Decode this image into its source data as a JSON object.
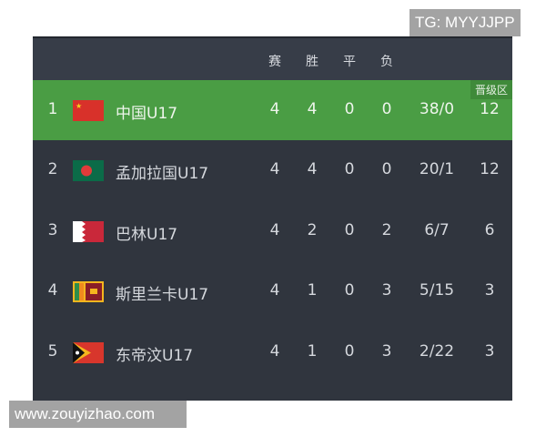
{
  "watermarks": {
    "top": "TG: MYYJJPP",
    "bottom": "www.zouyizhao.com"
  },
  "header": {
    "columns": [
      "赛",
      "胜",
      "平",
      "负"
    ]
  },
  "badge": "晋级区",
  "colors": {
    "promotion": "#4a9d44",
    "panel": "#30353e",
    "header": "#373d48"
  },
  "rows": [
    {
      "rank": "1",
      "flag": "china-flag",
      "team": "中国U17",
      "played": "4",
      "won": "4",
      "drawn": "0",
      "lost": "0",
      "goals": "38/0",
      "points": "12"
    },
    {
      "rank": "2",
      "flag": "bangladesh-flag",
      "team": "孟加拉国U17",
      "played": "4",
      "won": "4",
      "drawn": "0",
      "lost": "0",
      "goals": "20/1",
      "points": "12"
    },
    {
      "rank": "3",
      "flag": "bahrain-flag",
      "team": "巴林U17",
      "played": "4",
      "won": "2",
      "drawn": "0",
      "lost": "2",
      "goals": "6/7",
      "points": "6"
    },
    {
      "rank": "4",
      "flag": "sri-lanka-flag",
      "team": "斯里兰卡U17",
      "played": "4",
      "won": "1",
      "drawn": "0",
      "lost": "3",
      "goals": "5/15",
      "points": "3"
    },
    {
      "rank": "5",
      "flag": "timor-leste-flag",
      "team": "东帝汶U17",
      "played": "4",
      "won": "1",
      "drawn": "0",
      "lost": "3",
      "goals": "2/22",
      "points": "3"
    }
  ]
}
